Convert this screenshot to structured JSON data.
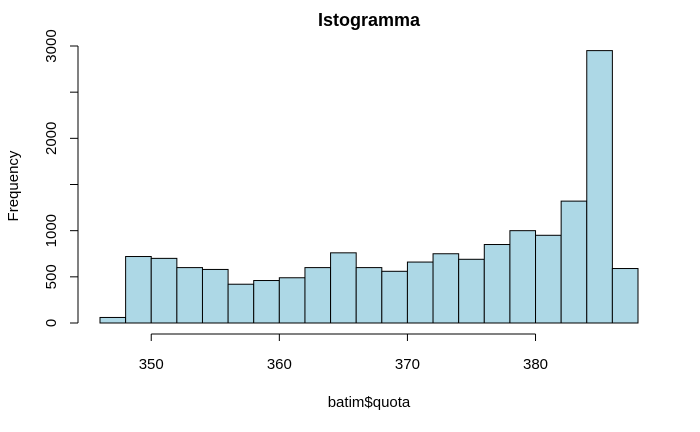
{
  "chart_data": {
    "type": "bar",
    "title": "Istogramma",
    "xlabel": "batim$quota",
    "ylabel": "Frequency",
    "bar_color": "#add8e6",
    "outline_color": "#000000",
    "bin_width": 2,
    "xlim": [
      346,
      388
    ],
    "ylim": [
      0,
      3000
    ],
    "x_ticks": [
      350,
      360,
      370,
      380
    ],
    "y_ticks": [
      0,
      500,
      1000,
      1500,
      2000,
      2500,
      3000
    ],
    "y_tick_labels": [
      "0",
      "500",
      "1000",
      "",
      "2000",
      "",
      "3000"
    ],
    "x_axis_range": [
      350,
      380
    ],
    "bins": [
      {
        "start": 346,
        "end": 348,
        "count": 60
      },
      {
        "start": 348,
        "end": 350,
        "count": 720
      },
      {
        "start": 350,
        "end": 352,
        "count": 700
      },
      {
        "start": 352,
        "end": 354,
        "count": 600
      },
      {
        "start": 354,
        "end": 356,
        "count": 580
      },
      {
        "start": 356,
        "end": 358,
        "count": 420
      },
      {
        "start": 358,
        "end": 360,
        "count": 460
      },
      {
        "start": 360,
        "end": 362,
        "count": 490
      },
      {
        "start": 362,
        "end": 364,
        "count": 600
      },
      {
        "start": 364,
        "end": 366,
        "count": 760
      },
      {
        "start": 366,
        "end": 368,
        "count": 600
      },
      {
        "start": 368,
        "end": 370,
        "count": 560
      },
      {
        "start": 370,
        "end": 372,
        "count": 660
      },
      {
        "start": 372,
        "end": 374,
        "count": 750
      },
      {
        "start": 374,
        "end": 376,
        "count": 690
      },
      {
        "start": 376,
        "end": 378,
        "count": 850
      },
      {
        "start": 378,
        "end": 380,
        "count": 1000
      },
      {
        "start": 380,
        "end": 382,
        "count": 950
      },
      {
        "start": 382,
        "end": 384,
        "count": 1320
      },
      {
        "start": 384,
        "end": 386,
        "count": 2950
      },
      {
        "start": 386,
        "end": 388,
        "count": 590
      }
    ]
  }
}
